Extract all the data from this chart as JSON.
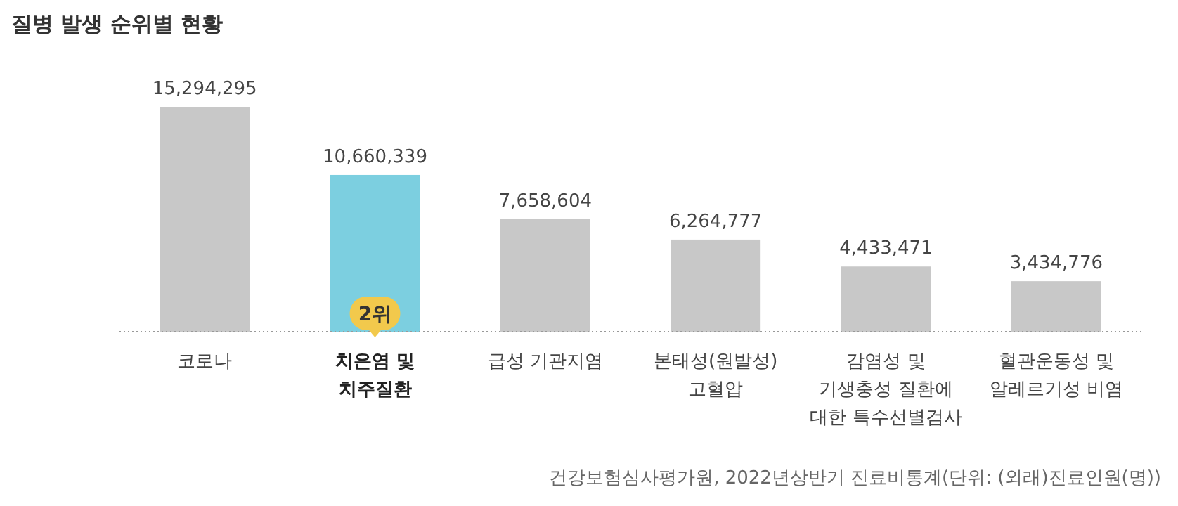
{
  "chart_data": {
    "type": "bar",
    "title": "질병 발생 순위별 현황",
    "categories": [
      "코로나",
      "치은염 및\n치주질환",
      "급성 기관지염",
      "본태성(원발성)\n고혈압",
      "감염성 및\n기생충성 질환에\n대한 특수선별검사",
      "혈관운동성 및\n알레르기성 비염"
    ],
    "values": [
      15294295,
      10660339,
      7658604,
      6264777,
      4433471,
      3434776
    ],
    "value_labels": [
      "15,294,295",
      "10,660,339",
      "7,658,604",
      "6,264,777",
      "4,433,471",
      "3,434,776"
    ],
    "colors": [
      "#c8c8c8",
      "#7ccfe0",
      "#c8c8c8",
      "#c8c8c8",
      "#c8c8c8",
      "#c8c8c8"
    ],
    "annotations": [
      {
        "text": "2위",
        "x": "치은염 및\n치주질환"
      },
      "건강보험심사평가원, 2022년상반기 진료비통계(단위: (외래)진료인원(명))"
    ]
  }
}
